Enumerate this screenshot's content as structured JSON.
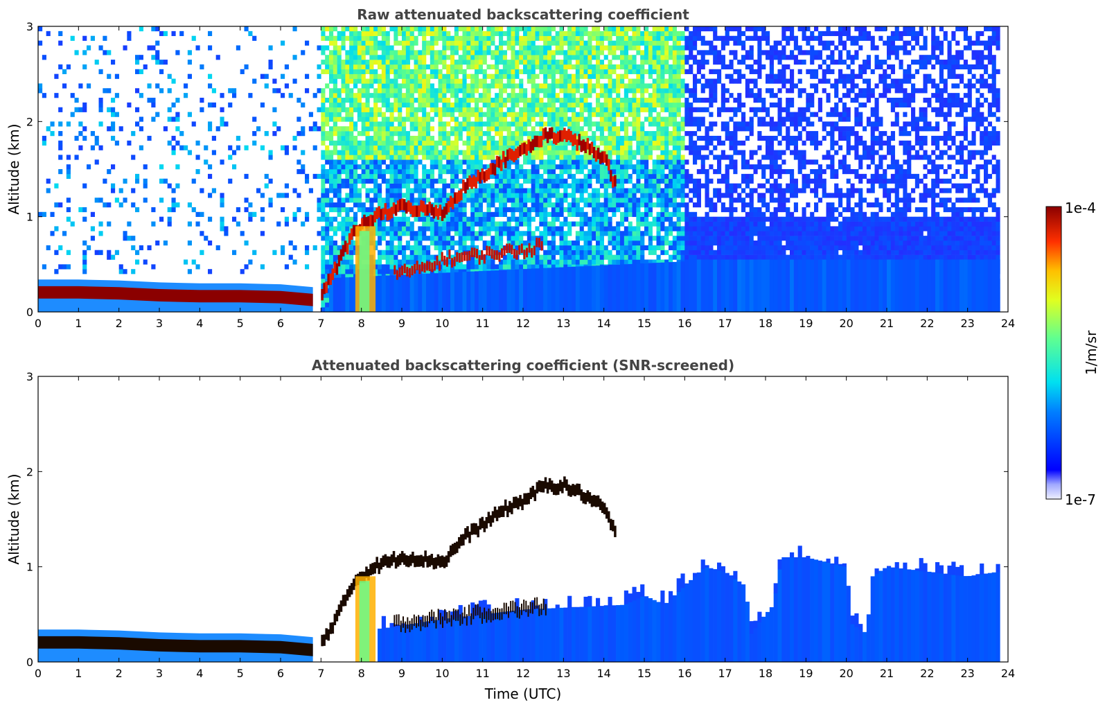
{
  "figure": {
    "xlabel": "Time (UTC)"
  },
  "colorbar": {
    "label": "1/m/sr",
    "max_label": "1e-4",
    "min_label": "1e-7",
    "vmin": 1e-07,
    "vmax": 0.0001,
    "scale": "log",
    "colormap": "jet (white at low end)"
  },
  "chart_data": [
    {
      "type": "heatmap",
      "title": "Raw attenuated backscattering coefficient",
      "xlabel": "",
      "ylabel": "Altitude (km)",
      "xlim": [
        0,
        24
      ],
      "ylim": [
        0,
        3
      ],
      "xticks": [
        "0",
        "1",
        "2",
        "3",
        "4",
        "5",
        "6",
        "7",
        "8",
        "9",
        "10",
        "11",
        "12",
        "13",
        "14",
        "15",
        "16",
        "17",
        "18",
        "19",
        "20",
        "21",
        "22",
        "23",
        "24"
      ],
      "yticks": [
        "0",
        "1",
        "2",
        "3"
      ],
      "features": {
        "surface_layer": [
          [
            0.0,
            0.2
          ],
          [
            1.0,
            0.2
          ],
          [
            2.0,
            0.19
          ],
          [
            3.0,
            0.17
          ],
          [
            4.0,
            0.16
          ],
          [
            5.0,
            0.16
          ],
          [
            6.0,
            0.15
          ],
          [
            6.8,
            0.12
          ]
        ],
        "cloud_top_layer": [
          [
            7.0,
            0.2
          ],
          [
            7.4,
            0.5
          ],
          [
            7.8,
            0.85
          ],
          [
            8.3,
            1.0
          ],
          [
            8.6,
            1.05
          ],
          [
            9.0,
            1.1
          ],
          [
            9.5,
            1.08
          ],
          [
            10.0,
            1.05
          ],
          [
            10.5,
            1.3
          ],
          [
            11.0,
            1.45
          ],
          [
            11.5,
            1.6
          ],
          [
            12.0,
            1.7
          ],
          [
            12.5,
            1.85
          ],
          [
            13.0,
            1.85
          ],
          [
            13.5,
            1.75
          ],
          [
            14.0,
            1.6
          ],
          [
            14.3,
            1.3
          ]
        ],
        "lower_cloud_band": [
          [
            8.8,
            0.4
          ],
          [
            9.5,
            0.45
          ],
          [
            10.0,
            0.55
          ],
          [
            11.0,
            0.6
          ],
          [
            12.0,
            0.65
          ],
          [
            12.5,
            0.7
          ]
        ],
        "noise_region": "high values above 1 km between 7 and 16 UTC; decaying noise after 16 UTC"
      }
    },
    {
      "type": "heatmap",
      "title": "Attenuated backscattering coefficient (SNR-screened)",
      "xlabel": "Time (UTC)",
      "ylabel": "Altitude (km)",
      "xlim": [
        0,
        24
      ],
      "ylim": [
        0,
        3
      ],
      "xticks": [
        "0",
        "1",
        "2",
        "3",
        "4",
        "5",
        "6",
        "7",
        "8",
        "9",
        "10",
        "11",
        "12",
        "13",
        "14",
        "15",
        "16",
        "17",
        "18",
        "19",
        "20",
        "21",
        "22",
        "23",
        "24"
      ],
      "yticks": [
        "0",
        "1",
        "2",
        "3"
      ],
      "features": {
        "surface_layer": [
          [
            0.0,
            0.2
          ],
          [
            1.0,
            0.2
          ],
          [
            2.0,
            0.19
          ],
          [
            3.0,
            0.17
          ],
          [
            4.0,
            0.16
          ],
          [
            5.0,
            0.16
          ],
          [
            6.0,
            0.15
          ],
          [
            6.8,
            0.12
          ]
        ],
        "cloud_top_layer": [
          [
            7.0,
            0.2
          ],
          [
            7.4,
            0.5
          ],
          [
            7.8,
            0.85
          ],
          [
            8.3,
            1.0
          ],
          [
            8.6,
            1.05
          ],
          [
            9.0,
            1.1
          ],
          [
            9.5,
            1.08
          ],
          [
            10.0,
            1.05
          ],
          [
            10.5,
            1.3
          ],
          [
            11.0,
            1.45
          ],
          [
            11.5,
            1.6
          ],
          [
            12.0,
            1.7
          ],
          [
            12.5,
            1.85
          ],
          [
            13.0,
            1.85
          ],
          [
            13.5,
            1.75
          ],
          [
            14.0,
            1.6
          ],
          [
            14.3,
            1.3
          ]
        ],
        "boundary_layer_top": [
          [
            8.5,
            0.35
          ],
          [
            10.0,
            0.45
          ],
          [
            12.0,
            0.55
          ],
          [
            14.5,
            0.6
          ],
          [
            15.0,
            0.7
          ],
          [
            15.5,
            0.6
          ],
          [
            16.0,
            0.8
          ],
          [
            16.5,
            1.0
          ],
          [
            17.0,
            0.95
          ],
          [
            17.5,
            0.8
          ],
          [
            17.65,
            0.3
          ],
          [
            17.9,
            0.45
          ],
          [
            18.2,
            0.6
          ],
          [
            18.4,
            1.1
          ],
          [
            19.0,
            1.1
          ],
          [
            20.0,
            1.0
          ],
          [
            20.15,
            0.4
          ],
          [
            20.5,
            0.3
          ],
          [
            20.65,
            0.9
          ],
          [
            21.0,
            1.0
          ],
          [
            22.0,
            0.95
          ],
          [
            23.0,
            0.9
          ],
          [
            23.8,
            0.95
          ]
        ]
      }
    }
  ]
}
